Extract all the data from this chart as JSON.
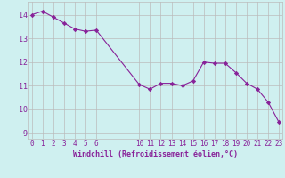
{
  "x": [
    0,
    1,
    2,
    3,
    4,
    5,
    6,
    10,
    11,
    12,
    13,
    14,
    15,
    16,
    17,
    18,
    19,
    20,
    21,
    22,
    23
  ],
  "y": [
    14.0,
    14.15,
    13.9,
    13.65,
    13.4,
    13.3,
    13.35,
    11.05,
    10.85,
    11.1,
    11.1,
    11.0,
    11.2,
    12.0,
    11.95,
    11.95,
    11.55,
    11.1,
    10.85,
    10.3,
    9.45
  ],
  "xticks": [
    0,
    1,
    2,
    3,
    4,
    5,
    6,
    10,
    11,
    12,
    13,
    14,
    15,
    16,
    17,
    18,
    19,
    20,
    21,
    22,
    23
  ],
  "xlim": [
    -0.3,
    23.3
  ],
  "ylim": [
    8.75,
    14.55
  ],
  "yticks": [
    9,
    10,
    11,
    12,
    13,
    14
  ],
  "xlabel": "Windchill (Refroidissement éolien,°C)",
  "line_color": "#882299",
  "marker": "D",
  "bg_color": "#cff0f0",
  "grid_color": "#bbbbbb",
  "marker_size": 2.2,
  "line_width": 0.8,
  "tick_fontsize": 5.5,
  "xlabel_fontsize": 6.0
}
